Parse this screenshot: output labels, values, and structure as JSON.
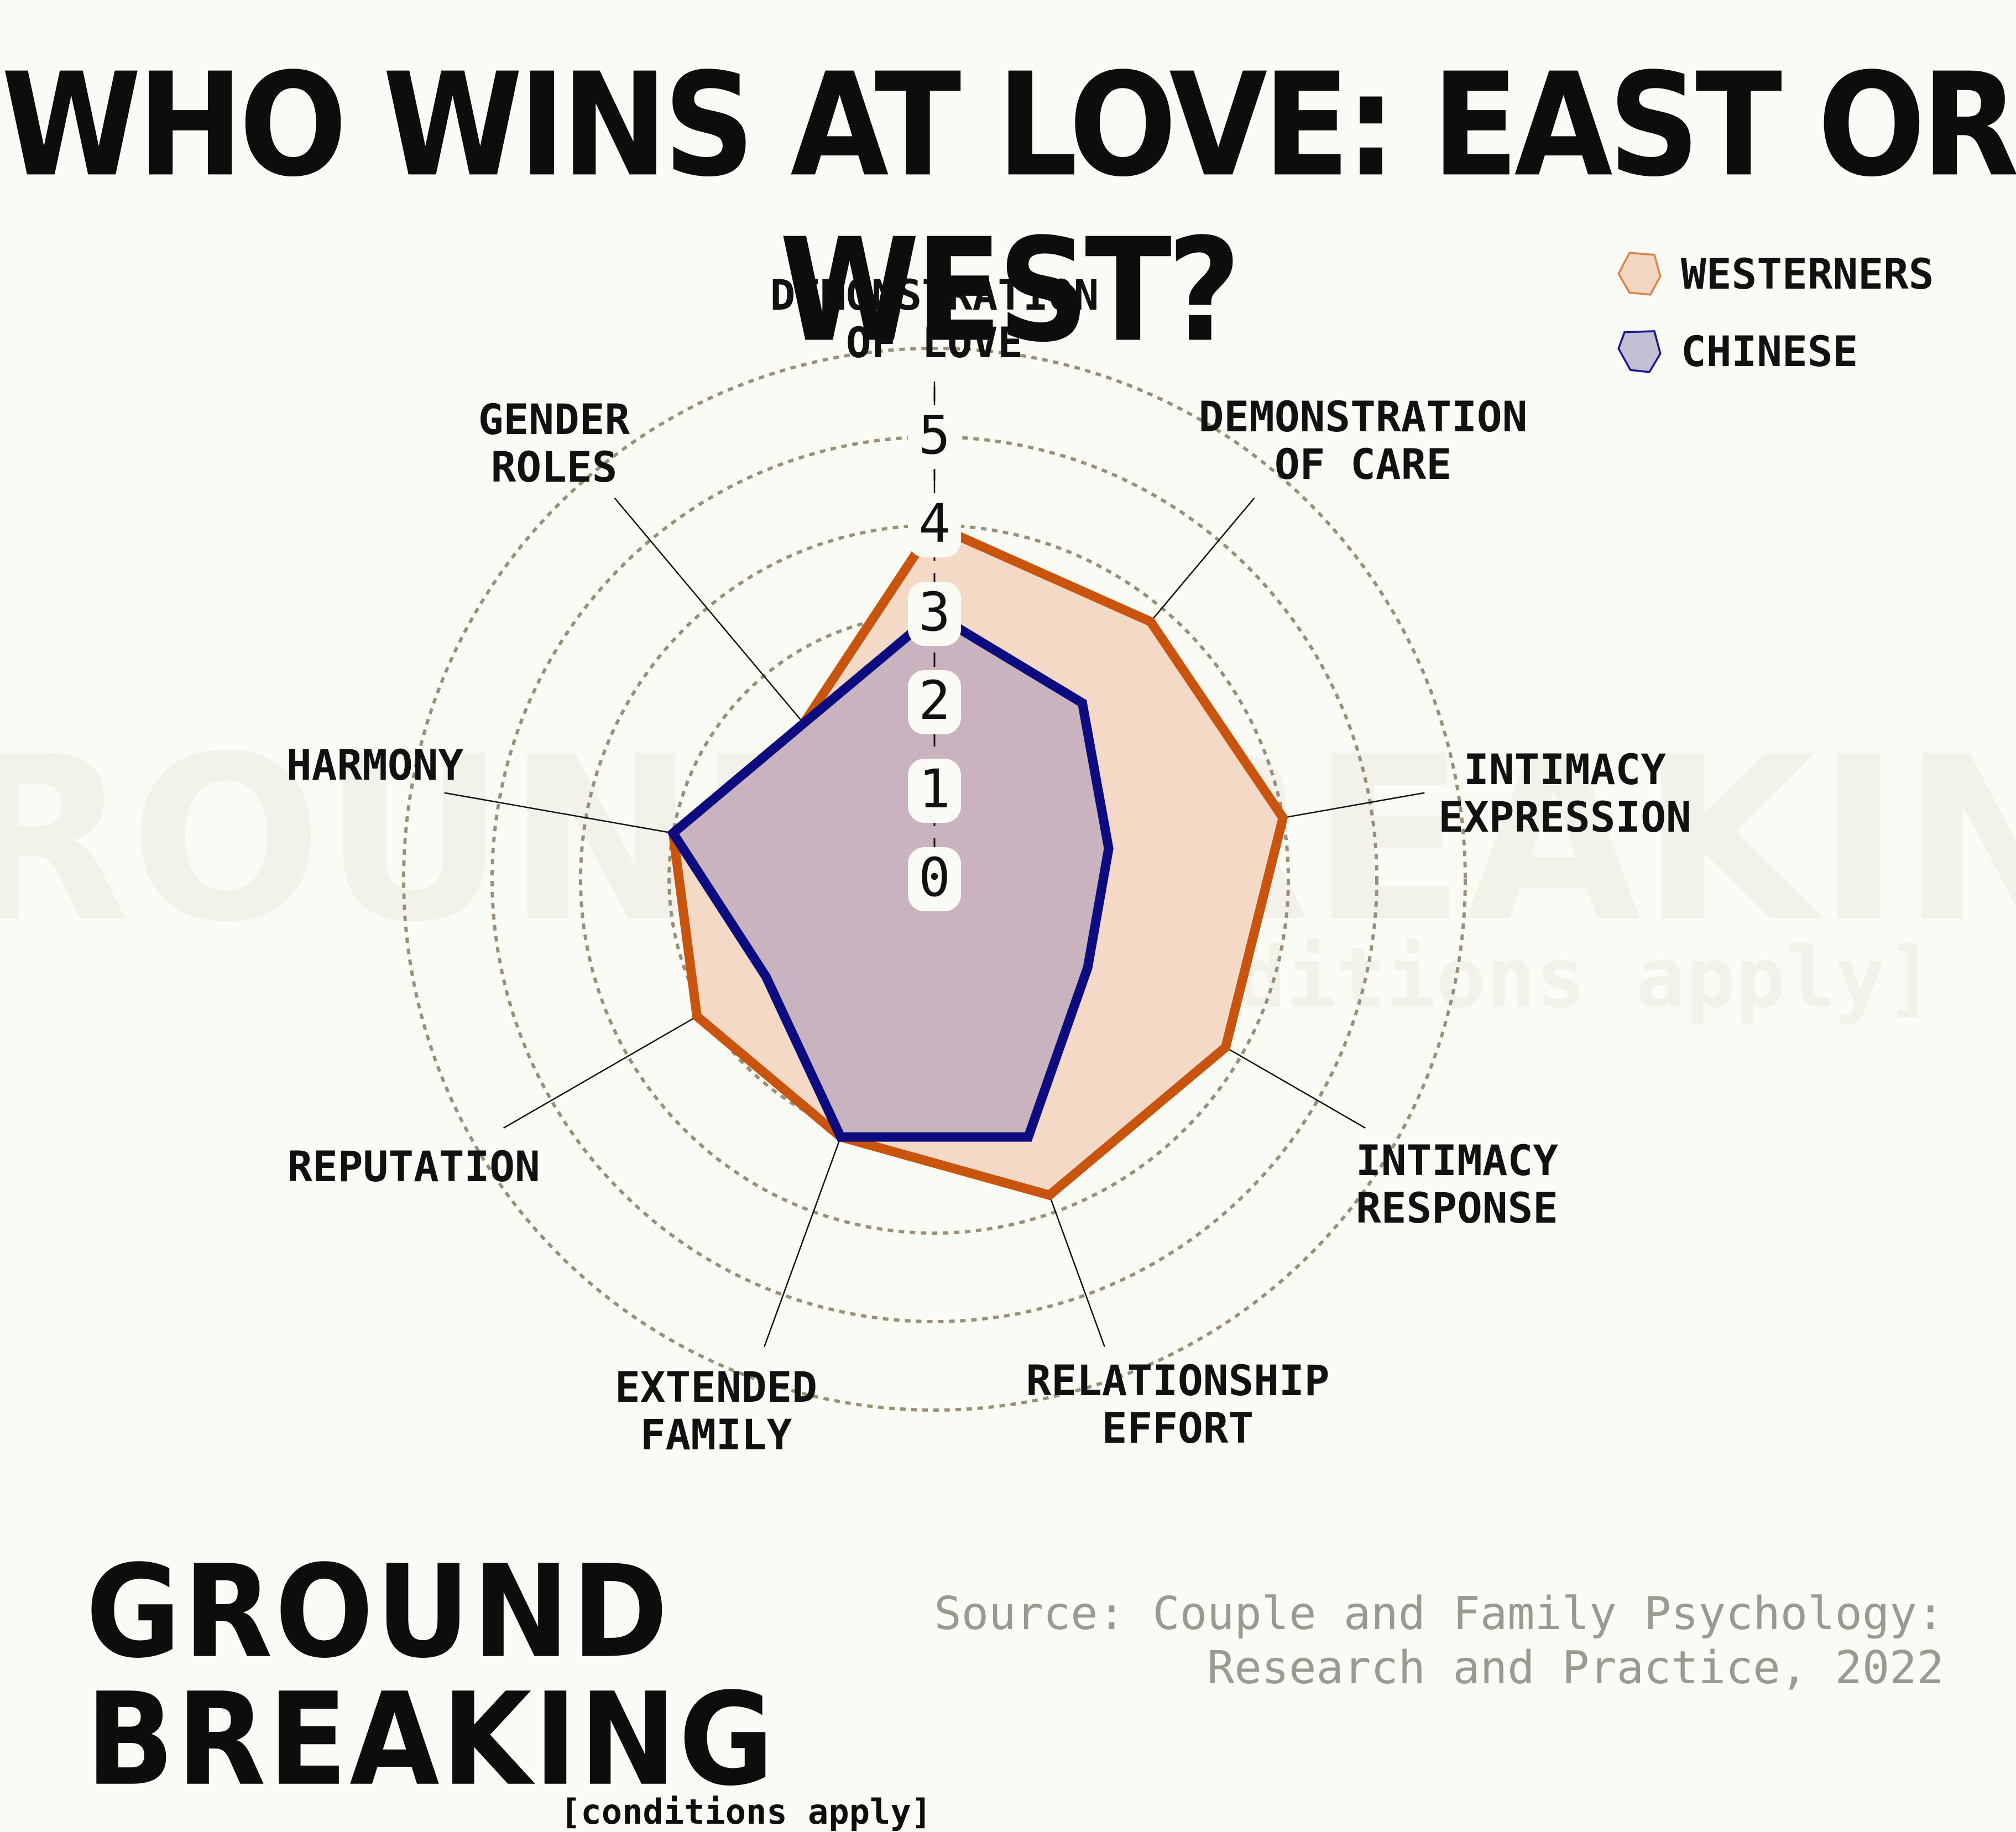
{
  "title": "WHO WINS AT LOVE: EAST OR WEST?",
  "legend": {
    "items": [
      {
        "label": "WESTERNERS",
        "fill": "#f2d6c1",
        "stroke": "#d9844f"
      },
      {
        "label": "CHINESE",
        "fill": "#c3c0d6",
        "stroke": "#1a1a8c"
      }
    ]
  },
  "colors": {
    "background": "#fbfbf5",
    "westerners_fill": "#f3d9c6",
    "westerners_line": "#c9540d",
    "chinese_fill": "#c3aebd",
    "chinese_line": "#0c0c80",
    "ring": "#9a8f78"
  },
  "chart_data": {
    "type": "radar",
    "axes": [
      {
        "label_lines": [
          "DEMONSTRATION",
          "OF LOVE"
        ]
      },
      {
        "label_lines": [
          "DEMONSTRATION",
          "OF CARE"
        ]
      },
      {
        "label_lines": [
          "INTIMACY",
          "EXPRESSION"
        ]
      },
      {
        "label_lines": [
          "INTIMACY",
          "RESPONSE"
        ]
      },
      {
        "label_lines": [
          "RELATIONSHIP",
          "EFFORT"
        ]
      },
      {
        "label_lines": [
          "EXTENDED",
          "FAMILY"
        ]
      },
      {
        "label_lines": [
          "REPUTATION"
        ]
      },
      {
        "label_lines": [
          "HARMONY"
        ]
      },
      {
        "label_lines": [
          "GENDER",
          "ROLES"
        ]
      }
    ],
    "ticks": [
      "0",
      "1",
      "2",
      "3",
      "4",
      "5"
    ],
    "range": [
      0,
      5
    ],
    "series": [
      {
        "name": "WESTERNERS",
        "values": [
          4.0,
          3.8,
          4.0,
          3.8,
          3.8,
          3.1,
          3.1,
          3.0,
          2.3
        ]
      },
      {
        "name": "CHINESE",
        "values": [
          3.0,
          2.6,
          2.0,
          2.0,
          3.1,
          3.1,
          2.2,
          3.0,
          2.3
        ]
      }
    ]
  },
  "brand": {
    "name": "GROUND BREAKING",
    "tagline": "[conditions apply]"
  },
  "watermark": {
    "name": "GROUND BREAKING",
    "tagline": "[conditions apply]"
  },
  "source": {
    "line1": "Source: Couple and Family Psychology:",
    "line2": "Research and Practice, 2022"
  }
}
